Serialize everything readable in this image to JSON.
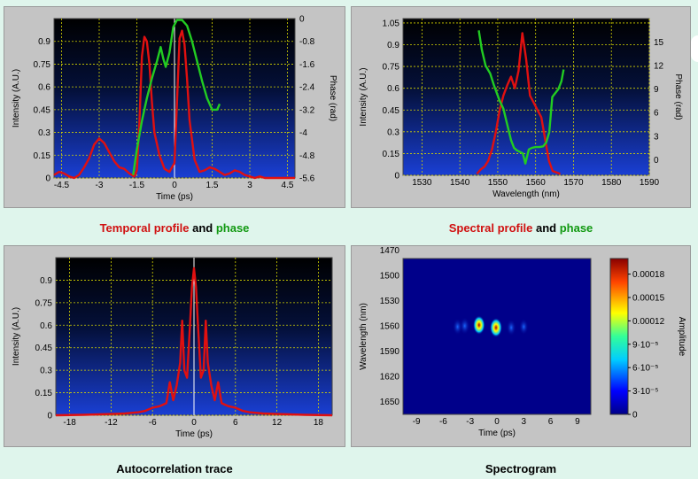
{
  "captions": {
    "temporal": {
      "a": "Temporal profile",
      "b": "and",
      "c": "phase"
    },
    "spectral": {
      "a": "Spectral profile",
      "b": "and",
      "c": "phase"
    },
    "autocorr": "Autocorrelation trace",
    "spectrogram": "Spectrogram"
  },
  "colors": {
    "intensity": "#e01010",
    "phase": "#22cc22",
    "panel": "#c4c4c4",
    "page": "#dff5ec"
  },
  "chart_data": [
    {
      "id": "temporal",
      "type": "line",
      "xlabel": "Time (ps)",
      "ylabel": "Intensity (A.U.)",
      "y2label": "Phase (rad)",
      "xlim": [
        -4.8,
        4.8
      ],
      "ylim": [
        0,
        1.05
      ],
      "y2lim": [
        -5.6,
        0.0
      ],
      "xticks": [
        "-4.5",
        "-3",
        "-1.5",
        "0",
        "1.5",
        "3",
        "4.5"
      ],
      "yticks": [
        "0",
        "0.15",
        "0.3",
        "0.45",
        "0.6",
        "0.75",
        "0.9"
      ],
      "y2ticks": [
        "-5.6",
        "-4.8",
        "-4",
        "-3.2",
        "-2.4",
        "-1.6",
        "-0.8",
        "0"
      ],
      "grid": true,
      "series": [
        {
          "role": "intensity",
          "x": [
            -4.8,
            -4.6,
            -4.4,
            -4.2,
            -4.0,
            -3.8,
            -3.6,
            -3.4,
            -3.2,
            -3.0,
            -2.8,
            -2.6,
            -2.4,
            -2.2,
            -2.0,
            -1.8,
            -1.6,
            -1.5,
            -1.4,
            -1.3,
            -1.2,
            -1.1,
            -1.0,
            -0.9,
            -0.8,
            -0.6,
            -0.4,
            -0.2,
            0.0,
            0.1,
            0.2,
            0.3,
            0.4,
            0.5,
            0.6,
            0.8,
            1.0,
            1.2,
            1.4,
            1.6,
            1.8,
            2.0,
            2.2,
            2.4,
            2.6,
            2.8,
            3.0,
            3.2,
            3.4,
            3.6,
            3.8,
            4.0,
            4.2,
            4.4,
            4.6,
            4.8
          ],
          "y": [
            0.02,
            0.04,
            0.03,
            0.01,
            0.0,
            0.02,
            0.07,
            0.13,
            0.22,
            0.26,
            0.23,
            0.17,
            0.11,
            0.07,
            0.06,
            0.03,
            0.01,
            0.05,
            0.35,
            0.8,
            0.93,
            0.9,
            0.75,
            0.5,
            0.3,
            0.15,
            0.06,
            0.04,
            0.1,
            0.5,
            0.92,
            0.97,
            0.88,
            0.65,
            0.38,
            0.12,
            0.04,
            0.05,
            0.07,
            0.06,
            0.04,
            0.02,
            0.03,
            0.05,
            0.04,
            0.02,
            0.01,
            0.0,
            0.01,
            0.0,
            0.0,
            0.0,
            0.0,
            0.0,
            0.0,
            0.0
          ]
        },
        {
          "role": "phase",
          "x": [
            -1.65,
            -1.5,
            -1.3,
            -1.1,
            -0.9,
            -0.7,
            -0.55,
            -0.45,
            -0.35,
            -0.2,
            -0.05,
            0.1,
            0.3,
            0.5,
            0.7,
            0.9,
            1.1,
            1.3,
            1.5,
            1.7,
            1.8
          ],
          "y": [
            -5.5,
            -4.6,
            -3.6,
            -2.8,
            -2.1,
            -1.5,
            -1.0,
            -1.4,
            -1.7,
            -1.2,
            -0.3,
            -0.05,
            -0.05,
            -0.25,
            -0.8,
            -1.5,
            -2.2,
            -2.8,
            -3.2,
            -3.2,
            -3.0
          ]
        }
      ]
    },
    {
      "id": "spectral",
      "type": "line",
      "xlabel": "Wavelength (nm)",
      "ylabel": "Intensity (A.U.)",
      "y2label": "Phase (rad)",
      "xlim": [
        1525,
        1590
      ],
      "ylim": [
        0,
        1.08
      ],
      "y2lim": [
        -2,
        18
      ],
      "xticks": [
        "1530",
        "1540",
        "1550",
        "1560",
        "1570",
        "1580",
        "1590"
      ],
      "yticks": [
        "0",
        "0.15",
        "0.3",
        "0.45",
        "0.6",
        "0.75",
        "0.9",
        "1.05"
      ],
      "y2ticks": [
        "0",
        "3",
        "6",
        "9",
        "12",
        "15"
      ],
      "grid": true,
      "series": [
        {
          "role": "intensity",
          "x": [
            1544.5,
            1545.5,
            1546.5,
            1547.5,
            1548.5,
            1549.5,
            1550.5,
            1551.5,
            1552.5,
            1553.5,
            1554.5,
            1555.5,
            1556.5,
            1557.5,
            1558.5,
            1559.5,
            1560.5,
            1561.5,
            1562.5,
            1563.5,
            1564.5,
            1565.5,
            1566.5
          ],
          "y": [
            0.01,
            0.04,
            0.06,
            0.1,
            0.18,
            0.3,
            0.45,
            0.55,
            0.62,
            0.68,
            0.6,
            0.72,
            0.98,
            0.8,
            0.55,
            0.5,
            0.45,
            0.4,
            0.25,
            0.1,
            0.03,
            0.02,
            0.01
          ]
        },
        {
          "role": "phase",
          "x": [
            1545.0,
            1545.8,
            1546.8,
            1548.0,
            1549.0,
            1550.5,
            1551.5,
            1552.5,
            1553.5,
            1554.3,
            1555.0,
            1555.8,
            1556.6,
            1557.3,
            1558.2,
            1559.0,
            1560.0,
            1561.0,
            1562.0,
            1562.8,
            1563.6,
            1564.4,
            1565.2,
            1566.0,
            1566.8,
            1567.4
          ],
          "y": [
            16.5,
            14.0,
            12.0,
            11.0,
            9.5,
            7.5,
            6.5,
            4.5,
            2.5,
            1.5,
            1.2,
            1.0,
            0.8,
            -0.5,
            1.3,
            1.5,
            1.6,
            1.6,
            1.7,
            2.2,
            3.5,
            8.0,
            8.5,
            9.0,
            10.0,
            11.5
          ]
        }
      ]
    },
    {
      "id": "autocorrelation",
      "type": "line",
      "xlabel": "Time (ps)",
      "ylabel": "Intensity (A.U.)",
      "xlim": [
        -20,
        20
      ],
      "ylim": [
        0,
        1.05
      ],
      "xticks": [
        "-18",
        "-12",
        "-6",
        "0",
        "6",
        "12",
        "18"
      ],
      "yticks": [
        "0",
        "0.15",
        "0.3",
        "0.45",
        "0.6",
        "0.75",
        "0.9"
      ],
      "grid": true,
      "series": [
        {
          "role": "intensity",
          "x": [
            -20,
            -16,
            -12,
            -10,
            -8,
            -7,
            -6,
            -5,
            -4.5,
            -4.0,
            -3.5,
            -3.0,
            -2.5,
            -2.0,
            -1.7,
            -1.4,
            -1.0,
            -0.6,
            -0.3,
            0,
            0.3,
            0.6,
            1.0,
            1.4,
            1.7,
            2.0,
            2.5,
            3.0,
            3.5,
            4.0,
            4.5,
            5,
            6,
            7,
            8,
            10,
            12,
            16,
            20
          ],
          "y": [
            0,
            0.003,
            0.008,
            0.012,
            0.02,
            0.03,
            0.05,
            0.06,
            0.07,
            0.08,
            0.22,
            0.1,
            0.2,
            0.35,
            0.63,
            0.3,
            0.25,
            0.58,
            0.85,
            0.98,
            0.85,
            0.58,
            0.25,
            0.3,
            0.63,
            0.35,
            0.2,
            0.1,
            0.22,
            0.08,
            0.07,
            0.06,
            0.05,
            0.03,
            0.02,
            0.012,
            0.008,
            0.003,
            0
          ]
        }
      ]
    },
    {
      "id": "spectrogram",
      "type": "heatmap",
      "xlabel": "Time (ps)",
      "ylabel": "Wavelength (nm)",
      "colorbar_label": "Amplitude",
      "xlim": [
        -10.5,
        10.5
      ],
      "ylim": [
        1480,
        1665
      ],
      "xticks": [
        "-9",
        "-6",
        "-3",
        "0",
        "3",
        "6",
        "9"
      ],
      "yticks": [
        "1470",
        "1500",
        "1530",
        "1560",
        "1590",
        "1620",
        "1650"
      ],
      "colorbar_ticks": [
        "0",
        "3·10⁻⁵",
        "6·10⁻⁵",
        "9·10⁻⁵",
        "0.00012",
        "0.00015",
        "0.00018"
      ],
      "clim": [
        0,
        0.0002
      ],
      "spots": [
        {
          "t": -2.0,
          "wl": 1559,
          "amp": 0.00018
        },
        {
          "t": -0.1,
          "wl": 1562,
          "amp": 0.0002
        },
        {
          "t": -3.6,
          "wl": 1560,
          "amp": 9e-05
        },
        {
          "t": -4.4,
          "wl": 1561,
          "amp": 5e-05
        },
        {
          "t": 1.6,
          "wl": 1562,
          "amp": 5e-05
        },
        {
          "t": 3.0,
          "wl": 1561,
          "amp": 3e-05
        }
      ]
    }
  ]
}
